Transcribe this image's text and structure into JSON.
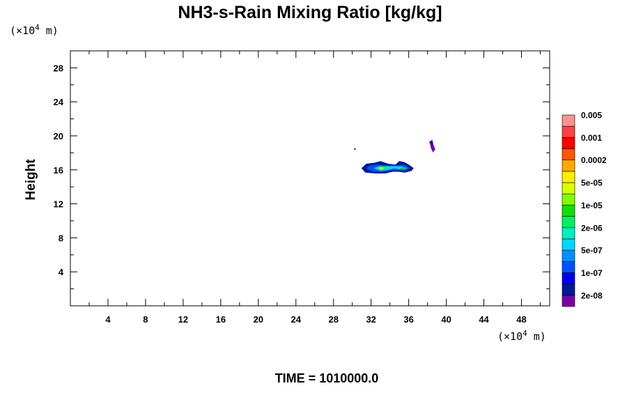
{
  "chart_data": {
    "type": "contour",
    "title": "NH3-s-Rain Mixing Ratio [kg/kg]",
    "xunit": "(×10",
    "xunit_exp": "4",
    "xunit_tail": " m)",
    "yunit": "(×10",
    "yunit_exp": "4",
    "yunit_tail": " m)",
    "ylabel": "Height",
    "xlabel": "",
    "xlim": [
      0,
      51
    ],
    "ylim": [
      0,
      30
    ],
    "xticks": [
      4,
      8,
      12,
      16,
      20,
      24,
      28,
      32,
      36,
      40,
      44,
      48
    ],
    "yticks": [
      4,
      8,
      12,
      16,
      20,
      24,
      28
    ],
    "grid": false,
    "time_label": "TIME = 1010000.0",
    "colorbar": {
      "colors": [
        "#7a00a8",
        "#00189a",
        "#0000f0",
        "#0050ff",
        "#0090ff",
        "#00d8ff",
        "#00f0c0",
        "#00f060",
        "#10e000",
        "#80ff00",
        "#d8ff00",
        "#ffee00",
        "#ffaa00",
        "#ff5500",
        "#ff0000",
        "#ff4040",
        "#ff9090"
      ],
      "labels": [
        "2e-08",
        "1e-07",
        "5e-07",
        "2e-06",
        "1e-05",
        "5e-05",
        "0.0002",
        "0.001",
        "0.005"
      ]
    },
    "features": [
      {
        "name": "main-cloud-outer",
        "level": 1,
        "points": [
          [
            31.0,
            16.2
          ],
          [
            31.4,
            15.7
          ],
          [
            32.5,
            15.6
          ],
          [
            33.5,
            15.6
          ],
          [
            34.3,
            15.8
          ],
          [
            34.9,
            15.8
          ],
          [
            35.6,
            15.7
          ],
          [
            36.3,
            15.9
          ],
          [
            36.5,
            16.2
          ],
          [
            36.0,
            16.6
          ],
          [
            35.5,
            16.9
          ],
          [
            35.0,
            17.0
          ],
          [
            34.6,
            16.6
          ],
          [
            33.8,
            16.7
          ],
          [
            33.0,
            17.0
          ],
          [
            32.3,
            16.8
          ],
          [
            31.5,
            16.7
          ]
        ]
      },
      {
        "name": "main-cloud-l2",
        "level": 3,
        "points": [
          [
            31.5,
            16.2
          ],
          [
            32.2,
            15.8
          ],
          [
            33.3,
            15.8
          ],
          [
            34.1,
            16.0
          ],
          [
            34.8,
            16.0
          ],
          [
            35.6,
            15.9
          ],
          [
            36.1,
            16.2
          ],
          [
            35.5,
            16.6
          ],
          [
            34.8,
            16.5
          ],
          [
            33.6,
            16.5
          ],
          [
            32.6,
            16.6
          ],
          [
            31.9,
            16.5
          ]
        ]
      },
      {
        "name": "main-cloud-l3",
        "level": 5,
        "points": [
          [
            32.3,
            16.2
          ],
          [
            33.0,
            15.9
          ],
          [
            33.8,
            16.0
          ],
          [
            34.4,
            16.2
          ],
          [
            35.0,
            16.1
          ],
          [
            35.6,
            16.2
          ],
          [
            35.2,
            16.4
          ],
          [
            34.5,
            16.4
          ],
          [
            33.6,
            16.4
          ],
          [
            32.8,
            16.4
          ]
        ]
      },
      {
        "name": "main-cloud-l4",
        "level": 7,
        "points": [
          [
            32.6,
            16.2
          ],
          [
            33.1,
            16.0
          ],
          [
            33.7,
            16.1
          ],
          [
            33.5,
            16.4
          ],
          [
            33.0,
            16.4
          ]
        ]
      },
      {
        "name": "main-cloud-core",
        "level": 10,
        "points": [
          [
            32.85,
            16.2
          ],
          [
            33.1,
            16.05
          ],
          [
            33.35,
            16.2
          ],
          [
            33.1,
            16.32
          ]
        ]
      },
      {
        "name": "right-cloud-core",
        "level": 8,
        "points": [
          [
            35.2,
            16.2
          ],
          [
            35.5,
            16.05
          ],
          [
            35.8,
            16.2
          ],
          [
            35.5,
            16.32
          ]
        ]
      },
      {
        "name": "upper-blob",
        "level": 0,
        "points": [
          [
            38.2,
            19.3
          ],
          [
            38.5,
            19.5
          ],
          [
            38.6,
            19.0
          ],
          [
            38.8,
            18.4
          ],
          [
            38.6,
            18.1
          ],
          [
            38.4,
            18.5
          ],
          [
            38.3,
            19.0
          ]
        ]
      },
      {
        "name": "upper-blob-inner",
        "level": 1,
        "points": [
          [
            38.35,
            19.2
          ],
          [
            38.5,
            19.35
          ],
          [
            38.55,
            19.0
          ],
          [
            38.45,
            18.9
          ]
        ]
      },
      {
        "name": "speck",
        "level": 1,
        "points": [
          [
            30.2,
            18.5
          ],
          [
            30.35,
            18.5
          ],
          [
            30.35,
            18.4
          ],
          [
            30.2,
            18.4
          ]
        ]
      }
    ]
  }
}
